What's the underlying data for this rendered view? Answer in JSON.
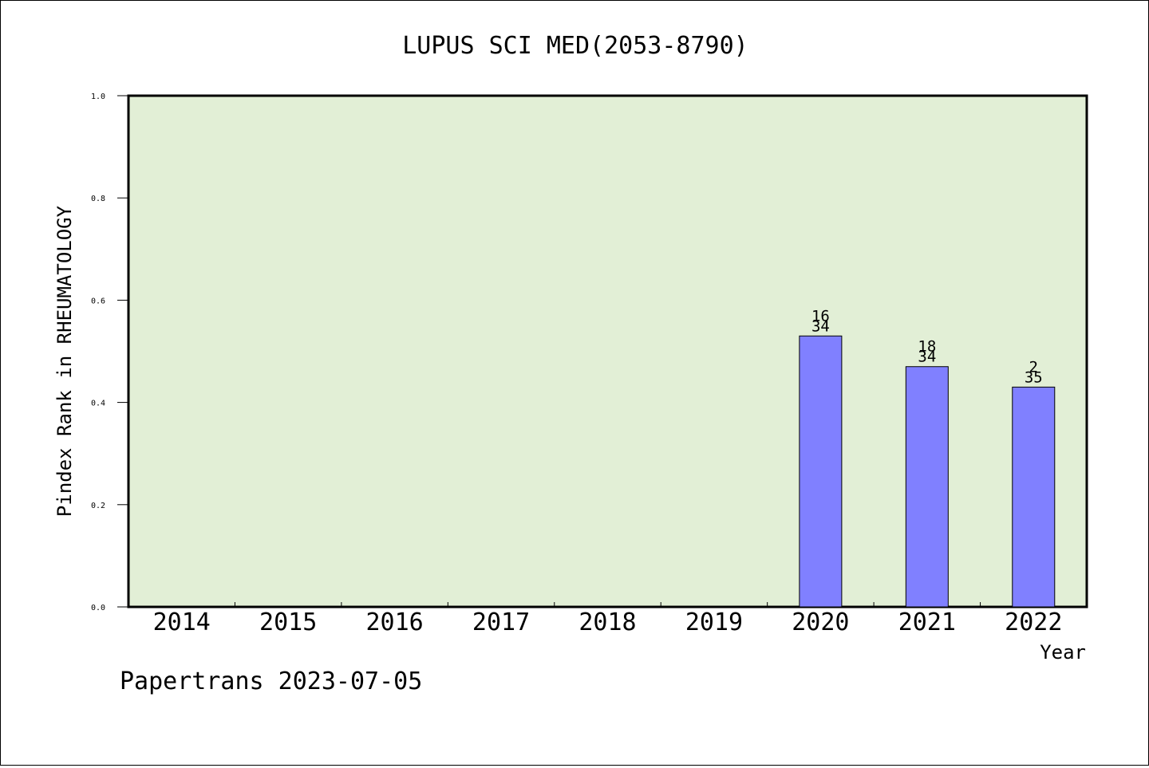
{
  "chart_data": {
    "type": "bar",
    "title": "LUPUS SCI MED(2053-8790)",
    "xlabel": "Year",
    "ylabel": "Pindex Rank in RHEUMATOLOGY",
    "categories": [
      "2014",
      "2015",
      "2016",
      "2017",
      "2018",
      "2019",
      "2020",
      "2021",
      "2022"
    ],
    "values": [
      null,
      null,
      null,
      null,
      null,
      null,
      0.53,
      0.47,
      0.43
    ],
    "bar_labels": [
      null,
      null,
      null,
      null,
      null,
      null,
      {
        "top": "16",
        "bottom": "34"
      },
      {
        "top": "18",
        "bottom": "34"
      },
      {
        "top": "2",
        "bottom": "35"
      }
    ],
    "ylim": [
      0,
      1
    ],
    "yticks": [
      "0.0",
      "0.2",
      "0.4",
      "0.6",
      "0.8",
      "1.0"
    ],
    "grid": false,
    "colors": {
      "plot_background": "#e2efd6",
      "bar_fill": "#8080ff",
      "bar_stroke": "#000000"
    }
  },
  "footer": "Papertrans 2023-07-05"
}
